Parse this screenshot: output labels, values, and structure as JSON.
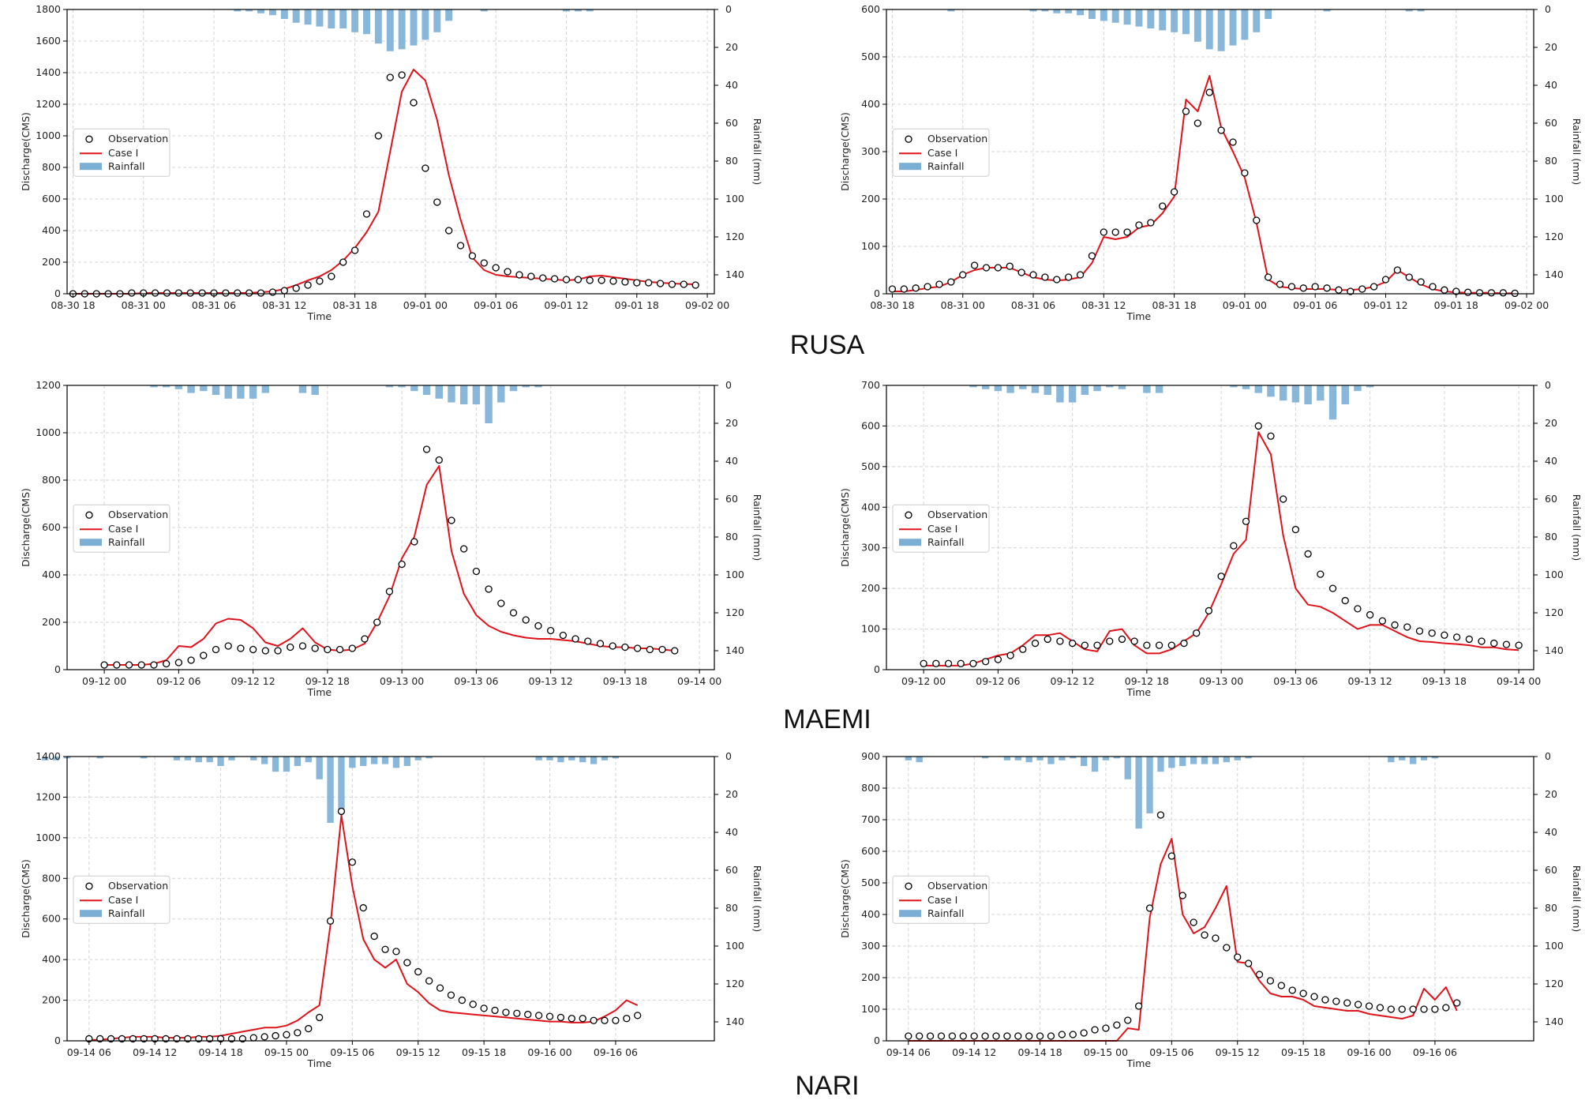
{
  "event_labels": [
    "RUSA",
    "MAEMI",
    "NARI"
  ],
  "colors": {
    "observation": "#000000",
    "case": "#e0131b",
    "rainfall": "#7bafd6",
    "grid": "#d3d3d3"
  },
  "chart_data": [
    {
      "id": "rusa-left",
      "type": "line",
      "event": "RUSA",
      "title": "",
      "xlabel": "Time",
      "ylabel": "Discharge(CMS)",
      "y2label": "Rainfall (mm)",
      "ylim": [
        0,
        1800
      ],
      "yticks": [
        0,
        200,
        400,
        600,
        800,
        1000,
        1200,
        1400,
        1600,
        1800
      ],
      "y2lim": [
        0,
        150
      ],
      "y2ticks": [
        0,
        20,
        40,
        60,
        80,
        100,
        120,
        140
      ],
      "xlim": [
        -0.5,
        54.6
      ],
      "xticks": [
        0,
        6,
        12,
        18,
        24,
        30,
        36,
        42,
        48,
        54
      ],
      "xtick_labels": [
        "08-30 18",
        "08-31 00",
        "08-31 06",
        "08-31 12",
        "08-31 18",
        "09-01 00",
        "09-01 06",
        "09-01 12",
        "09-01 18",
        "09-02 00"
      ],
      "legend": [
        "Observation",
        "Case I",
        "Rainfall"
      ],
      "legend_position": "center-left",
      "observation": [
        0,
        0,
        0,
        0,
        0,
        5,
        5,
        5,
        5,
        5,
        5,
        5,
        5,
        5,
        5,
        5,
        5,
        10,
        20,
        35,
        55,
        80,
        110,
        200,
        275,
        505,
        1000,
        1370,
        1385,
        1210,
        795,
        580,
        400,
        305,
        240,
        195,
        165,
        140,
        120,
        110,
        100,
        95,
        90,
        90,
        85,
        85,
        80,
        75,
        70,
        70,
        65,
        60,
        60,
        55
      ],
      "case": [
        0,
        0,
        0,
        0,
        0,
        0,
        5,
        5,
        5,
        5,
        5,
        5,
        5,
        5,
        5,
        5,
        10,
        15,
        30,
        55,
        85,
        110,
        150,
        210,
        290,
        390,
        520,
        900,
        1280,
        1420,
        1350,
        1100,
        750,
        470,
        230,
        150,
        120,
        110,
        105,
        100,
        95,
        90,
        85,
        90,
        110,
        115,
        105,
        95,
        85,
        75,
        70,
        65,
        62,
        60
      ],
      "rainfall": [
        0,
        0,
        0,
        0,
        0,
        0,
        0,
        0,
        0,
        0,
        0,
        0,
        0,
        0,
        1,
        1,
        2,
        3,
        5,
        7,
        8,
        9,
        10,
        10,
        12,
        13,
        18,
        22,
        21,
        19,
        16,
        12,
        6,
        0,
        0,
        1,
        0,
        0,
        0,
        0,
        0,
        0,
        1,
        1,
        1,
        0,
        0,
        0,
        0,
        0,
        0,
        0,
        0,
        0
      ]
    },
    {
      "id": "rusa-right",
      "type": "line",
      "event": "RUSA",
      "title": "",
      "xlabel": "Time",
      "ylabel": "Discharge(CMS)",
      "y2label": "Rainfall (mm)",
      "ylim": [
        0,
        600
      ],
      "yticks": [
        0,
        100,
        200,
        300,
        400,
        500,
        600
      ],
      "y2lim": [
        0,
        150
      ],
      "y2ticks": [
        0,
        20,
        40,
        60,
        80,
        100,
        120,
        140
      ],
      "xlim": [
        -0.5,
        54.6
      ],
      "xticks": [
        0,
        6,
        12,
        18,
        24,
        30,
        36,
        42,
        48,
        54
      ],
      "xtick_labels": [
        "08-30 18",
        "08-31 00",
        "08-31 06",
        "08-31 12",
        "08-31 18",
        "09-01 00",
        "09-01 06",
        "09-01 12",
        "09-01 18",
        "09-02 00"
      ],
      "legend": [
        "Observation",
        "Case I",
        "Rainfall"
      ],
      "legend_position": "center-left",
      "observation": [
        10,
        10,
        12,
        15,
        20,
        25,
        40,
        60,
        55,
        55,
        58,
        45,
        40,
        35,
        30,
        35,
        40,
        80,
        130,
        130,
        130,
        145,
        150,
        185,
        215,
        385,
        360,
        425,
        345,
        320,
        255,
        155,
        35,
        20,
        15,
        12,
        15,
        12,
        8,
        5,
        10,
        15,
        30,
        50,
        35,
        25,
        15,
        8,
        5,
        3,
        2,
        2,
        2,
        1
      ],
      "case": [
        5,
        5,
        8,
        12,
        15,
        25,
        40,
        50,
        55,
        55,
        55,
        45,
        35,
        30,
        28,
        30,
        35,
        65,
        120,
        115,
        120,
        140,
        145,
        170,
        205,
        410,
        385,
        460,
        350,
        300,
        245,
        150,
        30,
        15,
        12,
        10,
        10,
        10,
        8,
        8,
        10,
        15,
        25,
        50,
        35,
        20,
        10,
        5,
        3,
        2,
        2,
        2,
        1,
        1
      ],
      "rainfall": [
        0,
        0,
        0,
        0,
        0,
        1,
        0,
        0,
        0,
        0,
        0,
        0,
        1,
        1,
        2,
        2,
        3,
        5,
        6,
        7,
        8,
        9,
        10,
        11,
        12,
        13,
        17,
        21,
        22,
        19,
        16,
        12,
        5,
        0,
        0,
        0,
        0,
        1,
        0,
        0,
        0,
        0,
        0,
        0,
        1,
        1,
        0,
        0,
        0,
        0,
        0,
        0,
        0,
        0
      ]
    },
    {
      "id": "maemi-left",
      "type": "line",
      "event": "MAEMI",
      "title": "",
      "xlabel": "Time",
      "ylabel": "Discharge(CMS)",
      "y2label": "Rainfall (mm)",
      "ylim": [
        0,
        1200
      ],
      "yticks": [
        0,
        200,
        400,
        600,
        800,
        1000,
        1200
      ],
      "y2lim": [
        0,
        150
      ],
      "y2ticks": [
        0,
        20,
        40,
        60,
        80,
        100,
        120,
        140
      ],
      "xlim": [
        -3,
        49.2
      ],
      "xticks": [
        0,
        6,
        12,
        18,
        24,
        30,
        36,
        42,
        48
      ],
      "xtick_labels": [
        "09-12 00",
        "09-12 06",
        "09-12 12",
        "09-12 18",
        "09-13 00",
        "09-13 06",
        "09-13 12",
        "09-13 18",
        "09-14 00"
      ],
      "legend": [
        "Observation",
        "Case I",
        "Rainfall"
      ],
      "legend_position": "center-left",
      "observation": [
        20,
        20,
        20,
        20,
        20,
        25,
        30,
        40,
        60,
        85,
        100,
        90,
        85,
        80,
        80,
        95,
        100,
        90,
        85,
        85,
        90,
        130,
        200,
        330,
        445,
        540,
        930,
        885,
        630,
        510,
        415,
        340,
        280,
        240,
        210,
        185,
        165,
        145,
        130,
        120,
        110,
        100,
        95,
        90,
        85,
        85,
        80
      ],
      "case": [
        20,
        20,
        20,
        20,
        25,
        40,
        100,
        95,
        130,
        195,
        215,
        210,
        175,
        115,
        100,
        130,
        175,
        115,
        85,
        80,
        85,
        110,
        200,
        310,
        470,
        560,
        780,
        860,
        500,
        320,
        230,
        185,
        160,
        145,
        135,
        130,
        130,
        125,
        120,
        110,
        100,
        95,
        95,
        90,
        90,
        85,
        80
      ],
      "rainfall": [
        0,
        0,
        0,
        0,
        1,
        1,
        2,
        4,
        3,
        5,
        7,
        7,
        7,
        4,
        0,
        0,
        4,
        5,
        0,
        0,
        0,
        0,
        0,
        1,
        1,
        3,
        5,
        7,
        9,
        10,
        10,
        20,
        9,
        3,
        1,
        1,
        0,
        0,
        0,
        0,
        0,
        0,
        0,
        0,
        0,
        0,
        0
      ]
    },
    {
      "id": "maemi-right",
      "type": "line",
      "event": "MAEMI",
      "title": "",
      "xlabel": "Time",
      "ylabel": "Discharge(CMS)",
      "y2label": "Rainfall (mm)",
      "ylim": [
        0,
        700
      ],
      "yticks": [
        0,
        100,
        200,
        300,
        400,
        500,
        600,
        700
      ],
      "y2lim": [
        0,
        150
      ],
      "y2ticks": [
        0,
        20,
        40,
        60,
        80,
        100,
        120,
        140
      ],
      "xlim": [
        -3,
        49.2
      ],
      "xticks": [
        0,
        6,
        12,
        18,
        24,
        30,
        36,
        42,
        48
      ],
      "xtick_labels": [
        "09-12 00",
        "09-12 06",
        "09-12 12",
        "09-12 18",
        "09-13 00",
        "09-13 06",
        "09-13 12",
        "09-13 18",
        "09-14 00"
      ],
      "legend": [
        "Observation",
        "Case I",
        "Rainfall"
      ],
      "legend_position": "center-left",
      "observation": [
        15,
        15,
        15,
        15,
        15,
        20,
        25,
        35,
        50,
        65,
        75,
        70,
        65,
        60,
        60,
        70,
        75,
        70,
        60,
        60,
        60,
        65,
        90,
        145,
        230,
        305,
        365,
        600,
        575,
        420,
        345,
        285,
        235,
        200,
        170,
        150,
        135,
        120,
        110,
        105,
        95,
        90,
        85,
        80,
        75,
        70,
        65,
        62,
        60
      ],
      "case": [
        10,
        10,
        10,
        10,
        15,
        25,
        35,
        40,
        60,
        85,
        85,
        90,
        70,
        50,
        45,
        95,
        100,
        60,
        40,
        40,
        50,
        70,
        90,
        140,
        210,
        285,
        320,
        585,
        530,
        330,
        200,
        160,
        155,
        140,
        120,
        100,
        110,
        110,
        95,
        80,
        70,
        68,
        65,
        63,
        60,
        55,
        55,
        50,
        48
      ],
      "rainfall": [
        0,
        0,
        0,
        0,
        1,
        2,
        3,
        4,
        2,
        4,
        5,
        9,
        9,
        5,
        3,
        1,
        2,
        0,
        4,
        4,
        0,
        0,
        0,
        0,
        0,
        1,
        2,
        4,
        6,
        8,
        9,
        10,
        8,
        18,
        10,
        3,
        1,
        0,
        0,
        0,
        0,
        0,
        0,
        0,
        0,
        0,
        0,
        0,
        0
      ]
    },
    {
      "id": "nari-left",
      "type": "line",
      "event": "NARI",
      "title": "",
      "xlabel": "Time",
      "ylabel": "Discharge(CMS)",
      "y2label": "Rainfall (mm)",
      "ylim": [
        0,
        1400
      ],
      "yticks": [
        0,
        200,
        400,
        600,
        800,
        1000,
        1200,
        1400
      ],
      "y2lim": [
        0,
        150
      ],
      "y2ticks": [
        0,
        20,
        40,
        60,
        80,
        100,
        120,
        140
      ],
      "xlim": [
        -2,
        57
      ],
      "xticks": [
        0,
        6,
        12,
        18,
        24,
        30,
        36,
        42,
        48
      ],
      "xtick_labels": [
        "09-14 06",
        "09-14 12",
        "09-14 18",
        "09-15 00",
        "09-15 06",
        "09-15 12",
        "09-15 18",
        "09-16 00",
        "09-16 06"
      ],
      "legend": [
        "Observation",
        "Case I",
        "Rainfall"
      ],
      "legend_position": "center-left",
      "observation": [
        10,
        10,
        10,
        10,
        10,
        10,
        10,
        10,
        10,
        10,
        10,
        10,
        10,
        10,
        10,
        15,
        20,
        25,
        30,
        40,
        60,
        115,
        590,
        1130,
        880,
        655,
        515,
        450,
        440,
        385,
        340,
        295,
        260,
        225,
        200,
        180,
        160,
        150,
        140,
        135,
        130,
        125,
        120,
        115,
        110,
        110,
        100,
        100,
        100,
        110,
        125
      ],
      "case": [
        5,
        5,
        10,
        15,
        20,
        20,
        20,
        15,
        15,
        15,
        20,
        20,
        25,
        35,
        45,
        55,
        65,
        65,
        75,
        100,
        140,
        175,
        570,
        1110,
        760,
        500,
        400,
        360,
        400,
        280,
        240,
        185,
        150,
        140,
        135,
        130,
        125,
        120,
        115,
        110,
        105,
        100,
        95,
        95,
        90,
        90,
        95,
        120,
        150,
        200,
        175
      ],
      "rainfall": [
        2,
        2,
        1,
        0,
        0,
        1,
        0,
        0,
        0,
        1,
        0,
        0,
        2,
        2,
        3,
        3,
        5,
        2,
        0,
        2,
        4,
        8,
        8,
        5,
        3,
        12,
        35,
        30,
        6,
        5,
        4,
        4,
        6,
        5,
        2,
        1,
        0,
        0,
        0,
        0,
        0,
        0,
        0,
        0,
        0,
        2,
        2,
        3,
        2,
        3,
        4,
        2,
        1
      ],
      "rainfall_x_offset": -4
    },
    {
      "id": "nari-right",
      "type": "line",
      "event": "NARI",
      "title": "",
      "xlabel": "Time",
      "ylabel": "Discharge(CMS)",
      "y2label": "Rainfall (mm)",
      "ylim": [
        0,
        900
      ],
      "yticks": [
        0,
        100,
        200,
        300,
        400,
        500,
        600,
        700,
        800,
        900
      ],
      "y2lim": [
        0,
        150
      ],
      "y2ticks": [
        0,
        20,
        40,
        60,
        80,
        100,
        120,
        140
      ],
      "xlim": [
        -2,
        57
      ],
      "xticks": [
        0,
        6,
        12,
        18,
        24,
        30,
        36,
        42,
        48
      ],
      "xtick_labels": [
        "09-14 06",
        "09-14 12",
        "09-14 18",
        "09-15 00",
        "09-15 06",
        "09-15 12",
        "09-15 18",
        "09-16 00",
        "09-16 06"
      ],
      "legend": [
        "Observation",
        "Case I",
        "Rainfall"
      ],
      "legend_position": "center-left",
      "observation": [
        15,
        15,
        15,
        15,
        15,
        15,
        15,
        15,
        15,
        15,
        15,
        15,
        15,
        15,
        20,
        20,
        25,
        35,
        40,
        50,
        65,
        110,
        420,
        715,
        585,
        460,
        375,
        335,
        325,
        295,
        265,
        245,
        210,
        190,
        175,
        160,
        150,
        140,
        130,
        125,
        120,
        115,
        110,
        105,
        100,
        100,
        100,
        100,
        100,
        105,
        120
      ],
      "case": [
        0,
        0,
        0,
        0,
        0,
        0,
        0,
        0,
        0,
        0,
        0,
        0,
        0,
        0,
        0,
        0,
        0,
        0,
        0,
        0,
        40,
        35,
        390,
        560,
        640,
        400,
        340,
        360,
        420,
        490,
        250,
        245,
        190,
        150,
        140,
        140,
        130,
        110,
        105,
        100,
        95,
        95,
        85,
        80,
        75,
        70,
        80,
        165,
        130,
        170,
        95
      ],
      "rainfall": [
        2,
        3,
        0,
        0,
        0,
        0,
        0,
        1,
        0,
        2,
        2,
        3,
        2,
        4,
        2,
        1,
        5,
        8,
        2,
        1,
        12,
        38,
        30,
        8,
        6,
        5,
        4,
        4,
        4,
        3,
        2,
        1,
        0,
        0,
        0,
        0,
        0,
        0,
        0,
        0,
        0,
        0,
        0,
        0,
        3,
        2,
        4,
        2,
        1,
        0,
        0
      ],
      "rainfall_x_offset": 0
    }
  ]
}
